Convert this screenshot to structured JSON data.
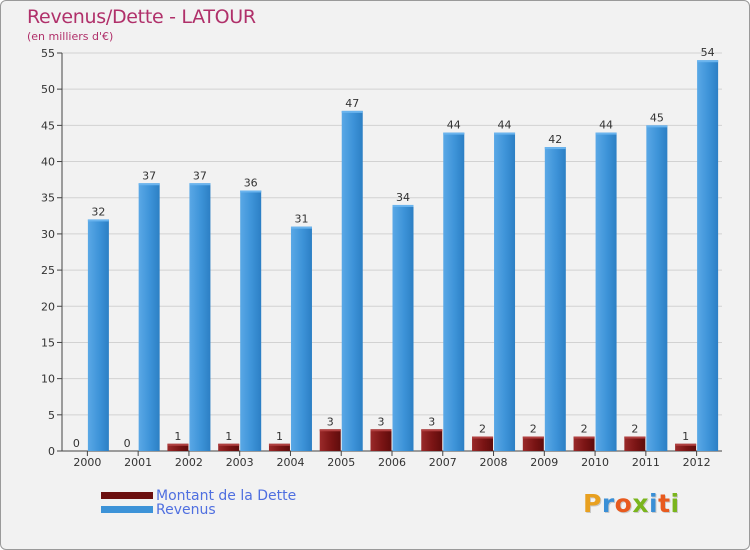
{
  "chart_data": {
    "type": "bar",
    "title": "Revenus/Dette - LATOUR",
    "subtitle": "(en milliers d'€)",
    "xlabel": "",
    "ylabel": "",
    "ylim": [
      0,
      55
    ],
    "yticks": [
      0,
      5,
      10,
      15,
      20,
      25,
      30,
      35,
      40,
      45,
      50,
      55
    ],
    "grid": true,
    "legend_position": "bottom-left",
    "categories": [
      "2000",
      "2001",
      "2002",
      "2003",
      "2004",
      "2005",
      "2006",
      "2007",
      "2008",
      "2009",
      "2010",
      "2011",
      "2012"
    ],
    "series": [
      {
        "name": "Montant de la Dette",
        "color": "#7a1414",
        "values": [
          0,
          0,
          1,
          1,
          1,
          3,
          3,
          3,
          2,
          2,
          2,
          2,
          1
        ]
      },
      {
        "name": "Revenus",
        "color": "#3d93d8",
        "values": [
          32,
          37,
          37,
          36,
          31,
          47,
          34,
          44,
          44,
          42,
          44,
          45,
          54
        ]
      }
    ]
  },
  "legend": {
    "items": [
      {
        "label": "Montant de la Dette",
        "color": "#6b0f0f"
      },
      {
        "label": "Revenus",
        "color": "#3d93d8"
      }
    ]
  },
  "logo": {
    "letters": [
      "P",
      "r",
      "o",
      "x",
      "i",
      "t",
      "i"
    ],
    "colors": [
      "#e8a020",
      "#3a8fd6",
      "#e85a1e",
      "#7ab51d",
      "#3a8fd6",
      "#e85a1e",
      "#7ab51d"
    ]
  }
}
